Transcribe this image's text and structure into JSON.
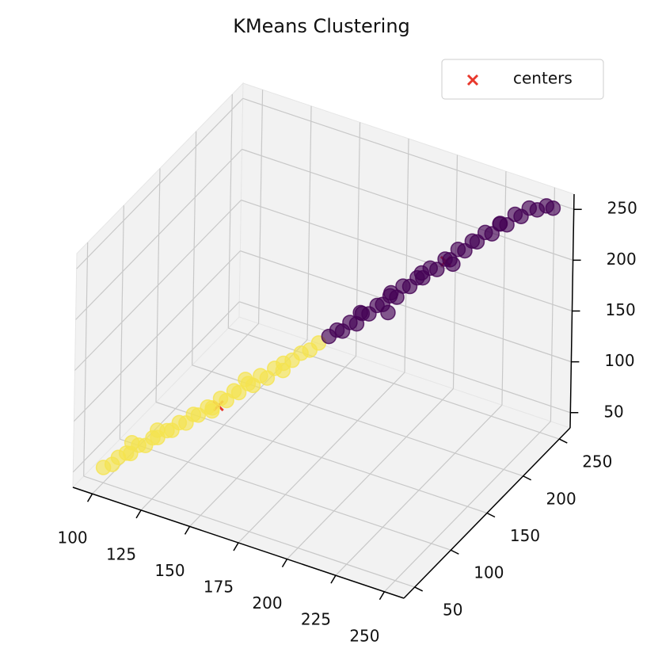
{
  "chart_data": {
    "type": "scatter3d",
    "title": "KMeans Clustering",
    "xlim": [
      90,
      260
    ],
    "ylim": [
      35,
      265
    ],
    "zlim": [
      35,
      265
    ],
    "xticks": [
      100,
      125,
      150,
      175,
      200,
      225,
      250
    ],
    "yticks": [
      50,
      100,
      150,
      200,
      250
    ],
    "zticks": [
      50,
      100,
      150,
      200,
      250
    ],
    "grid": true,
    "legend": "upper right",
    "series": [
      {
        "name": "centers",
        "color": "#e8382c",
        "marker": "x",
        "x": [
          140,
          215
        ],
        "y": [
          100,
          210
        ],
        "z": [
          100,
          210
        ]
      },
      {
        "color": "#f5e34f",
        "marker": "o",
        "x": [
          100,
          103,
          105,
          108,
          109,
          112,
          114,
          117,
          118,
          122,
          123,
          126,
          128,
          131,
          132,
          136,
          137,
          140,
          142,
          145,
          146,
          150,
          151,
          154,
          156,
          159,
          162,
          165,
          168,
          171,
          174,
          120,
          135,
          150,
          160,
          110
        ],
        "y": [
          50,
          54,
          57,
          60,
          63,
          66,
          70,
          72,
          76,
          78,
          82,
          84,
          88,
          90,
          94,
          96,
          100,
          103,
          106,
          108,
          112,
          114,
          118,
          120,
          124,
          126,
          130,
          134,
          138,
          142,
          146,
          70,
          105,
          110,
          135,
          62
        ],
        "z": [
          50,
          52,
          58,
          62,
          60,
          68,
          66,
          74,
          72,
          80,
          78,
          86,
          84,
          93,
          90,
          99,
          96,
          105,
          102,
          112,
          108,
          118,
          114,
          124,
          120,
          130,
          134,
          136,
          142,
          144,
          150,
          85,
          88,
          125,
          122,
          72
        ]
      },
      {
        "color": "#440154",
        "marker": "o",
        "x": [
          177,
          180,
          181,
          184,
          186,
          188,
          190,
          193,
          194,
          197,
          199,
          201,
          203,
          206,
          207,
          210,
          212,
          215,
          216,
          219,
          221,
          224,
          225,
          228,
          230,
          233,
          235,
          238,
          240,
          243,
          246,
          250,
          253,
          200,
          215,
          190,
          235,
          210,
          195
        ],
        "y": [
          152,
          155,
          160,
          162,
          166,
          168,
          172,
          175,
          180,
          182,
          186,
          189,
          193,
          195,
          200,
          202,
          206,
          209,
          213,
          216,
          220,
          222,
          226,
          229,
          233,
          236,
          240,
          243,
          246,
          249,
          252,
          254,
          255,
          175,
          220,
          160,
          230,
          190,
          185
        ],
        "z": [
          154,
          160,
          156,
          165,
          162,
          172,
          170,
          178,
          176,
          185,
          182,
          192,
          190,
          199,
          196,
          206,
          203,
          213,
          210,
          220,
          217,
          227,
          224,
          233,
          230,
          240,
          237,
          247,
          244,
          252,
          250,
          255,
          254,
          195,
          200,
          180,
          245,
          210,
          165
        ]
      }
    ]
  }
}
